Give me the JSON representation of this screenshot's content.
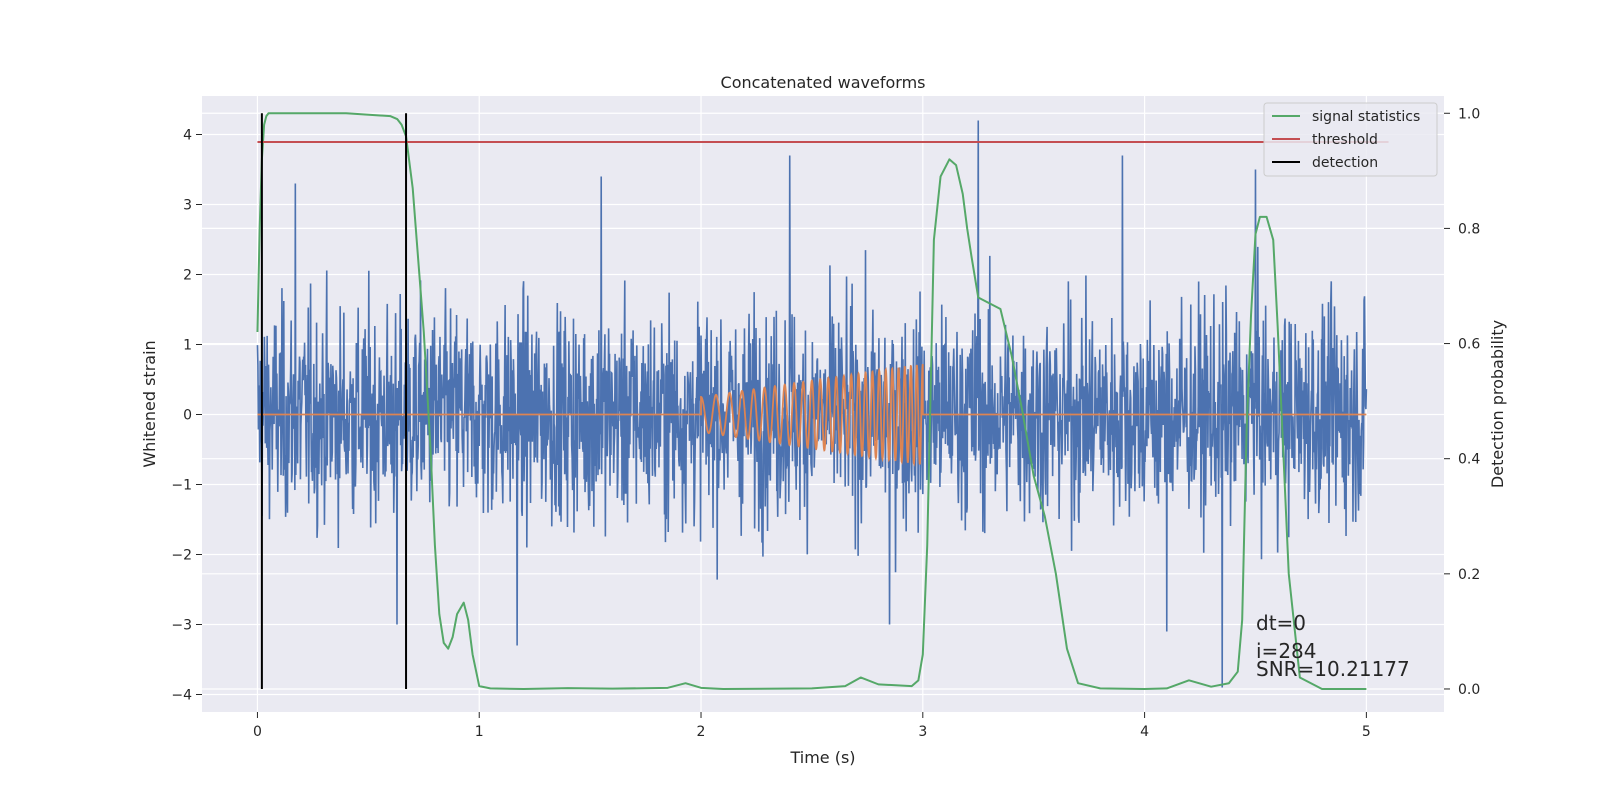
{
  "chart_data": {
    "type": "line",
    "title": "Concatenated waveforms",
    "xlabel": "Time (s)",
    "ylabel": "Whitened strain",
    "ylabel_right": "Detection probability",
    "xlim": [
      -0.25,
      5.35
    ],
    "ylim": [
      -4.25,
      4.55
    ],
    "ylim_right": [
      -0.04,
      1.03
    ],
    "xticks": [
      0,
      1,
      2,
      3,
      4,
      5
    ],
    "yticks": [
      -4,
      -3,
      -2,
      -1,
      0,
      1,
      2,
      3,
      4
    ],
    "yticks_right": [
      0.0,
      0.2,
      0.4,
      0.6,
      0.8,
      1.0
    ],
    "grid": true,
    "legend_placement": "upper-right",
    "series": [
      {
        "name": "",
        "axis": "left",
        "color": "#4c72b0",
        "kind": "noise",
        "x_range": [
          0,
          5
        ],
        "typical_amplitude": 1.0,
        "max": 4.2,
        "min": -3.9,
        "notable_spikes": [
          [
            0.17,
            3.3
          ],
          [
            1.55,
            3.4
          ],
          [
            2.4,
            3.7
          ],
          [
            3.25,
            4.2
          ],
          [
            3.9,
            3.7
          ],
          [
            4.35,
            -3.9
          ],
          [
            4.5,
            3.5
          ],
          [
            0.63,
            -3.0
          ],
          [
            1.17,
            -3.3
          ],
          [
            2.85,
            -3.0
          ],
          [
            4.1,
            -3.1
          ]
        ]
      },
      {
        "name": "",
        "axis": "left",
        "color": "#dd8452",
        "kind": "chirp",
        "x_range": [
          0,
          5
        ],
        "active_range": [
          2,
          3
        ],
        "amplitude_start": 0.25,
        "amplitude_end": 0.72,
        "frequency_start_hz": 14,
        "frequency_end_hz": 38
      },
      {
        "name": "signal statistics",
        "axis": "right",
        "color": "#55a868",
        "x": [
          0.0,
          0.01,
          0.02,
          0.03,
          0.04,
          0.05,
          0.07,
          0.1,
          0.2,
          0.4,
          0.6,
          0.63,
          0.65,
          0.67,
          0.7,
          0.72,
          0.75,
          0.78,
          0.8,
          0.82,
          0.84,
          0.86,
          0.88,
          0.9,
          0.93,
          0.95,
          0.97,
          1.0,
          1.05,
          1.2,
          1.4,
          1.6,
          1.85,
          1.93,
          2.0,
          2.1,
          2.5,
          2.65,
          2.72,
          2.8,
          2.95,
          2.98,
          3.0,
          3.02,
          3.05,
          3.08,
          3.12,
          3.15,
          3.18,
          3.2,
          3.22,
          3.25,
          3.3,
          3.35,
          3.4,
          3.45,
          3.5,
          3.55,
          3.6,
          3.65,
          3.7,
          3.8,
          4.0,
          4.1,
          4.2,
          4.3,
          4.38,
          4.42,
          4.44,
          4.46,
          4.48,
          4.5,
          4.52,
          4.55,
          4.58,
          4.6,
          4.65,
          4.7,
          4.8,
          5.0
        ],
        "y": [
          0.62,
          0.8,
          0.92,
          0.98,
          0.995,
          1.0,
          1.0,
          1.0,
          1.0,
          1.0,
          0.995,
          0.99,
          0.98,
          0.96,
          0.87,
          0.77,
          0.62,
          0.42,
          0.25,
          0.13,
          0.08,
          0.07,
          0.09,
          0.13,
          0.15,
          0.12,
          0.06,
          0.005,
          0.001,
          0.0,
          0.0015,
          0.0005,
          0.002,
          0.01,
          0.002,
          0.0,
          0.001,
          0.005,
          0.02,
          0.008,
          0.005,
          0.015,
          0.06,
          0.25,
          0.78,
          0.89,
          0.92,
          0.91,
          0.86,
          0.8,
          0.75,
          0.68,
          0.67,
          0.66,
          0.58,
          0.48,
          0.37,
          0.3,
          0.2,
          0.07,
          0.01,
          0.001,
          0.0,
          0.001,
          0.015,
          0.004,
          0.01,
          0.03,
          0.12,
          0.45,
          0.65,
          0.79,
          0.82,
          0.82,
          0.78,
          0.63,
          0.2,
          0.02,
          0.0,
          0.0
        ]
      },
      {
        "name": "threshold",
        "axis": "right",
        "color": "#c44e52",
        "x": [
          0,
          5.1
        ],
        "y": [
          0.95,
          0.95
        ]
      },
      {
        "name": "detection",
        "axis": "right",
        "color": "#000000",
        "kind": "vertical_lines",
        "x": [
          0.02,
          0.67
        ],
        "y_range": [
          0.0,
          1.0
        ]
      }
    ],
    "legend": [
      "signal statistics",
      "threshold",
      "detection"
    ],
    "annotations": {
      "dt": "dt=0",
      "i": "i=284",
      "snr": "SNR=10.21177"
    }
  }
}
